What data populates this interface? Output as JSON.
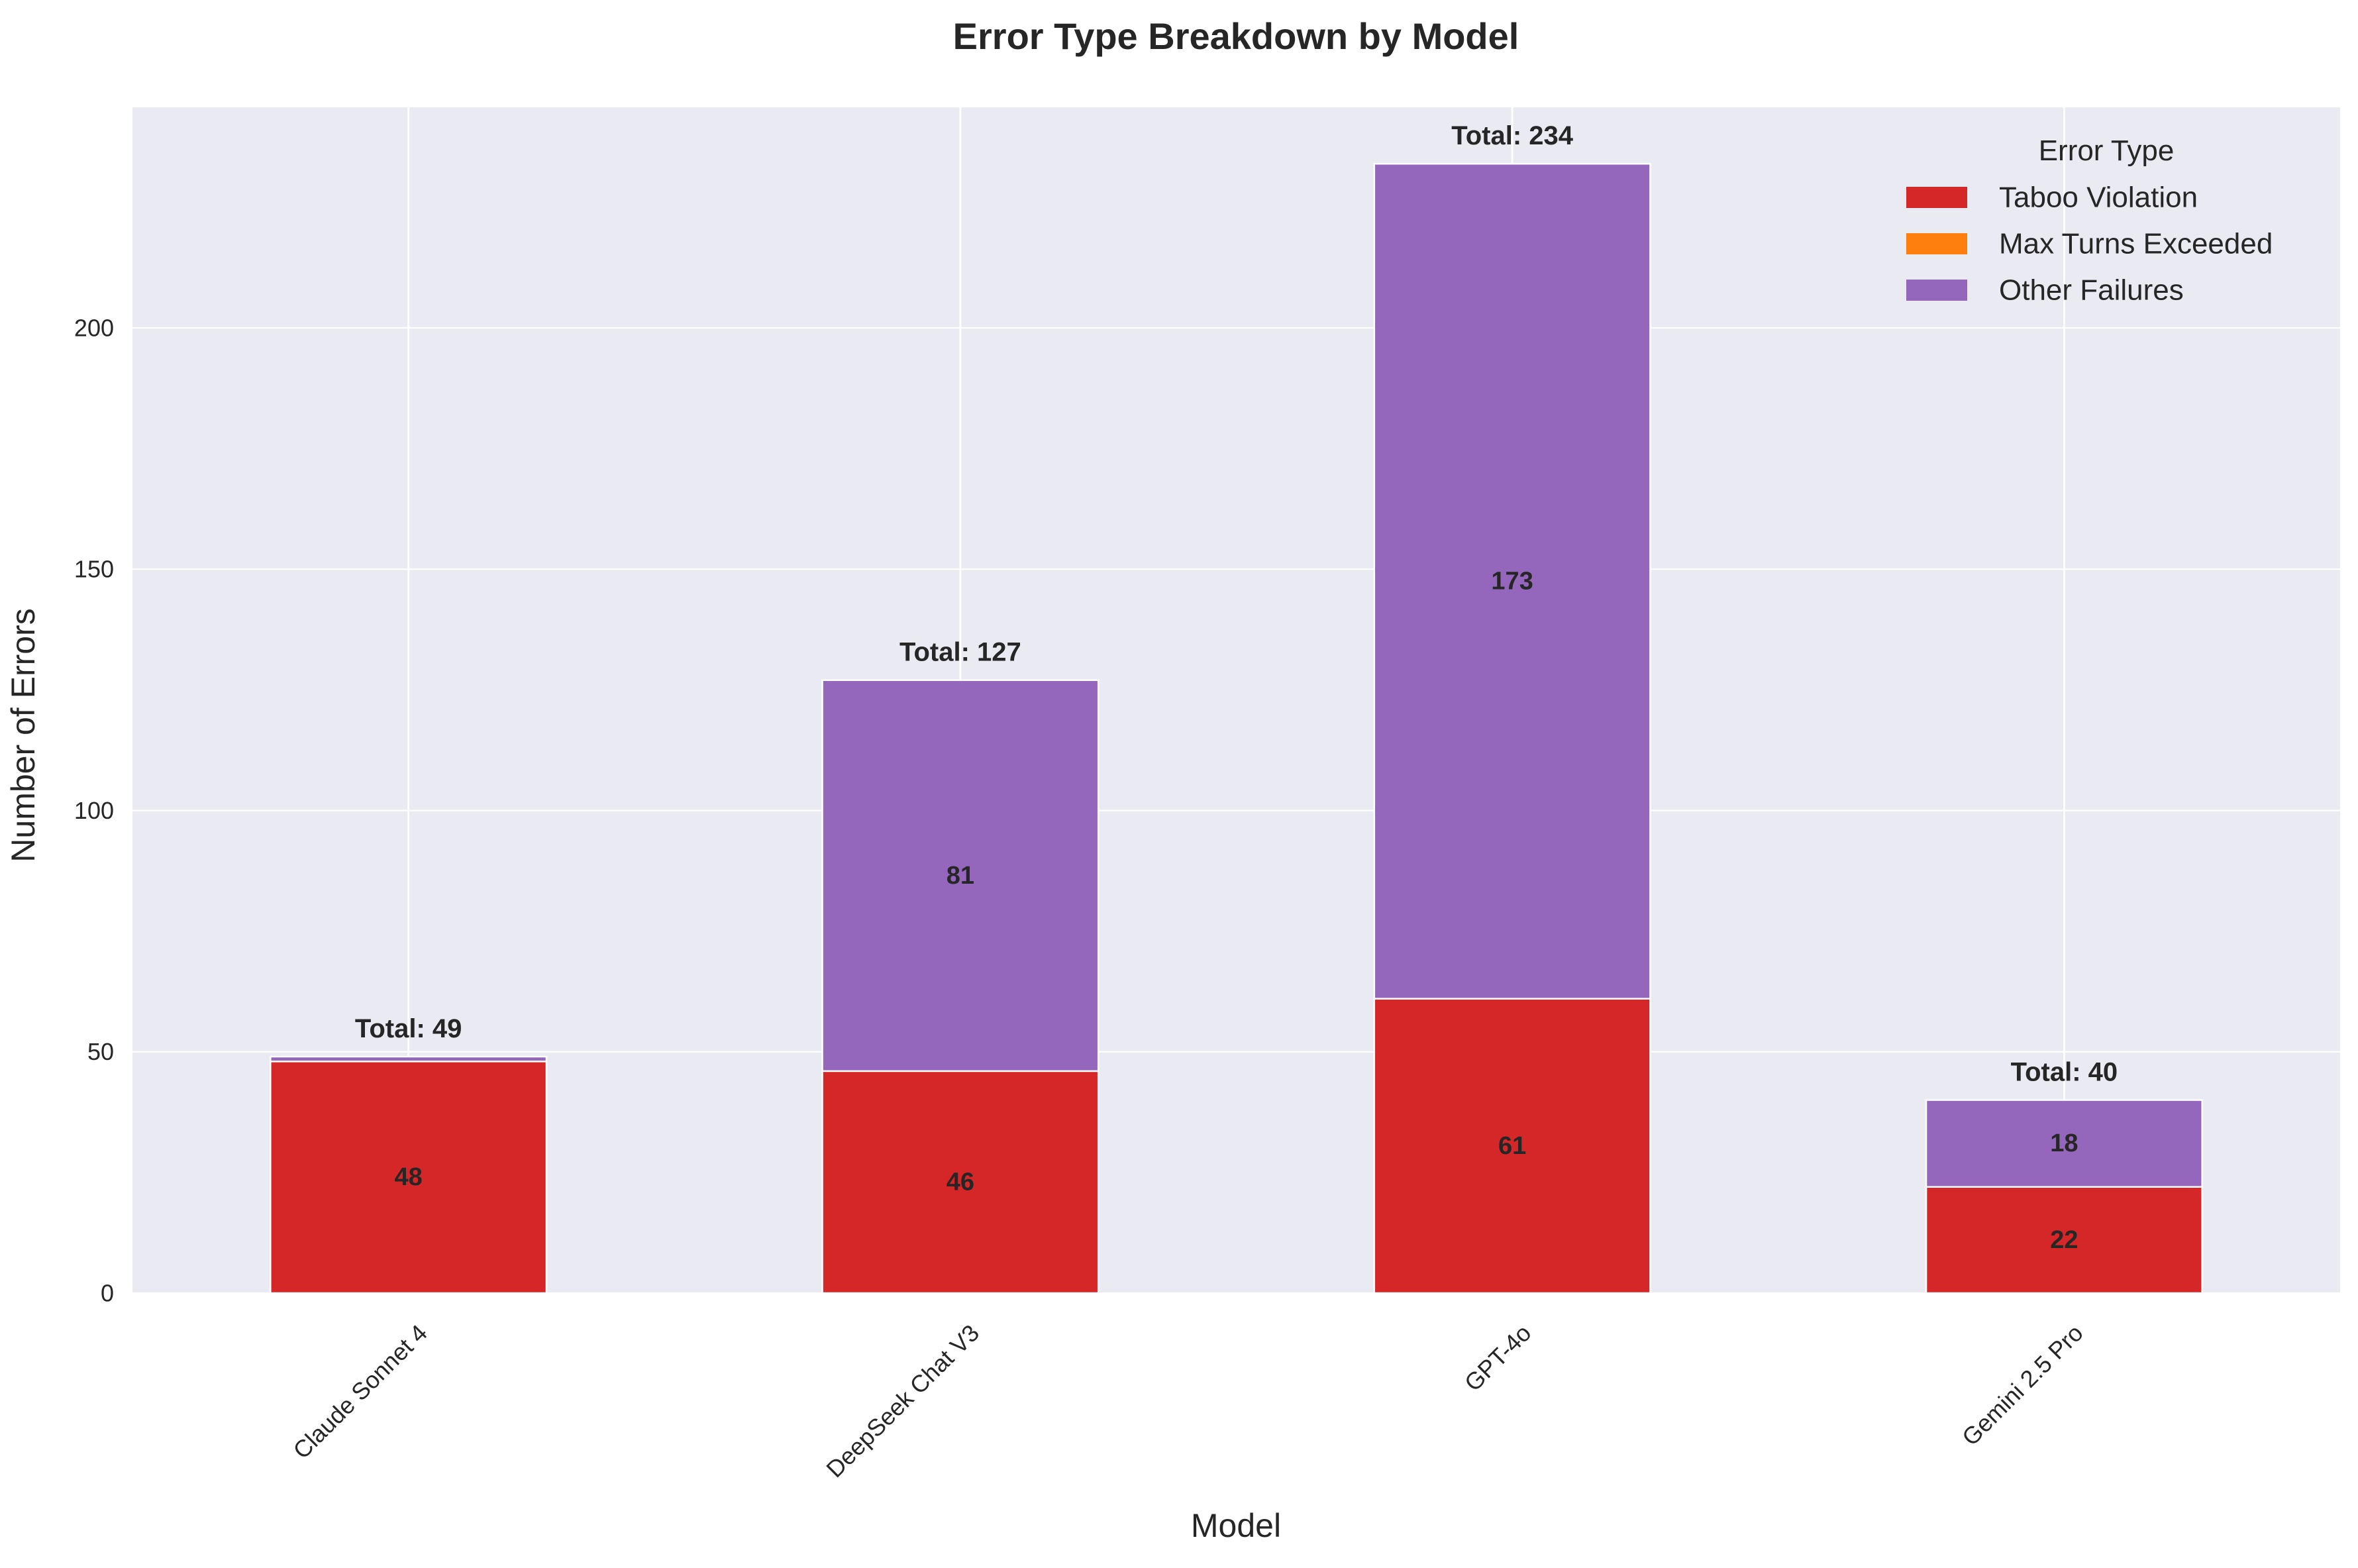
{
  "chart_data": {
    "type": "bar",
    "stacked": true,
    "title": "Error Type Breakdown by Model",
    "xlabel": "Model",
    "ylabel": "Number of Errors",
    "categories": [
      "Claude Sonnet 4",
      "DeepSeek Chat V3",
      "GPT-4o",
      "Gemini 2.5 Pro"
    ],
    "series": [
      {
        "name": "Taboo Violation",
        "color": "#d62728",
        "values": [
          48,
          46,
          61,
          22
        ]
      },
      {
        "name": "Max Turns Exceeded",
        "color": "#ff7f0e",
        "values": [
          0,
          0,
          0,
          0
        ]
      },
      {
        "name": "Other Failures",
        "color": "#9467bd",
        "values": [
          1,
          81,
          173,
          18
        ]
      }
    ],
    "segment_labels": [
      [
        {
          "series": 0,
          "text": "48"
        }
      ],
      [
        {
          "series": 0,
          "text": "46"
        },
        {
          "series": 2,
          "text": "81"
        }
      ],
      [
        {
          "series": 0,
          "text": "61"
        },
        {
          "series": 2,
          "text": "173"
        }
      ],
      [
        {
          "series": 0,
          "text": "22"
        },
        {
          "series": 2,
          "text": "18"
        }
      ]
    ],
    "totals": [
      "Total: 49",
      "Total: 127",
      "Total: 234",
      "Total: 40"
    ],
    "total_values": [
      49,
      127,
      234,
      40
    ],
    "yticks": [
      0,
      50,
      100,
      150,
      200
    ],
    "ylim": [
      0,
      245.7
    ],
    "grid": true,
    "legend": {
      "title": "Error Type",
      "placement": "top-right"
    },
    "background": "#eaeaf2",
    "grid_color": "#ffffff"
  }
}
